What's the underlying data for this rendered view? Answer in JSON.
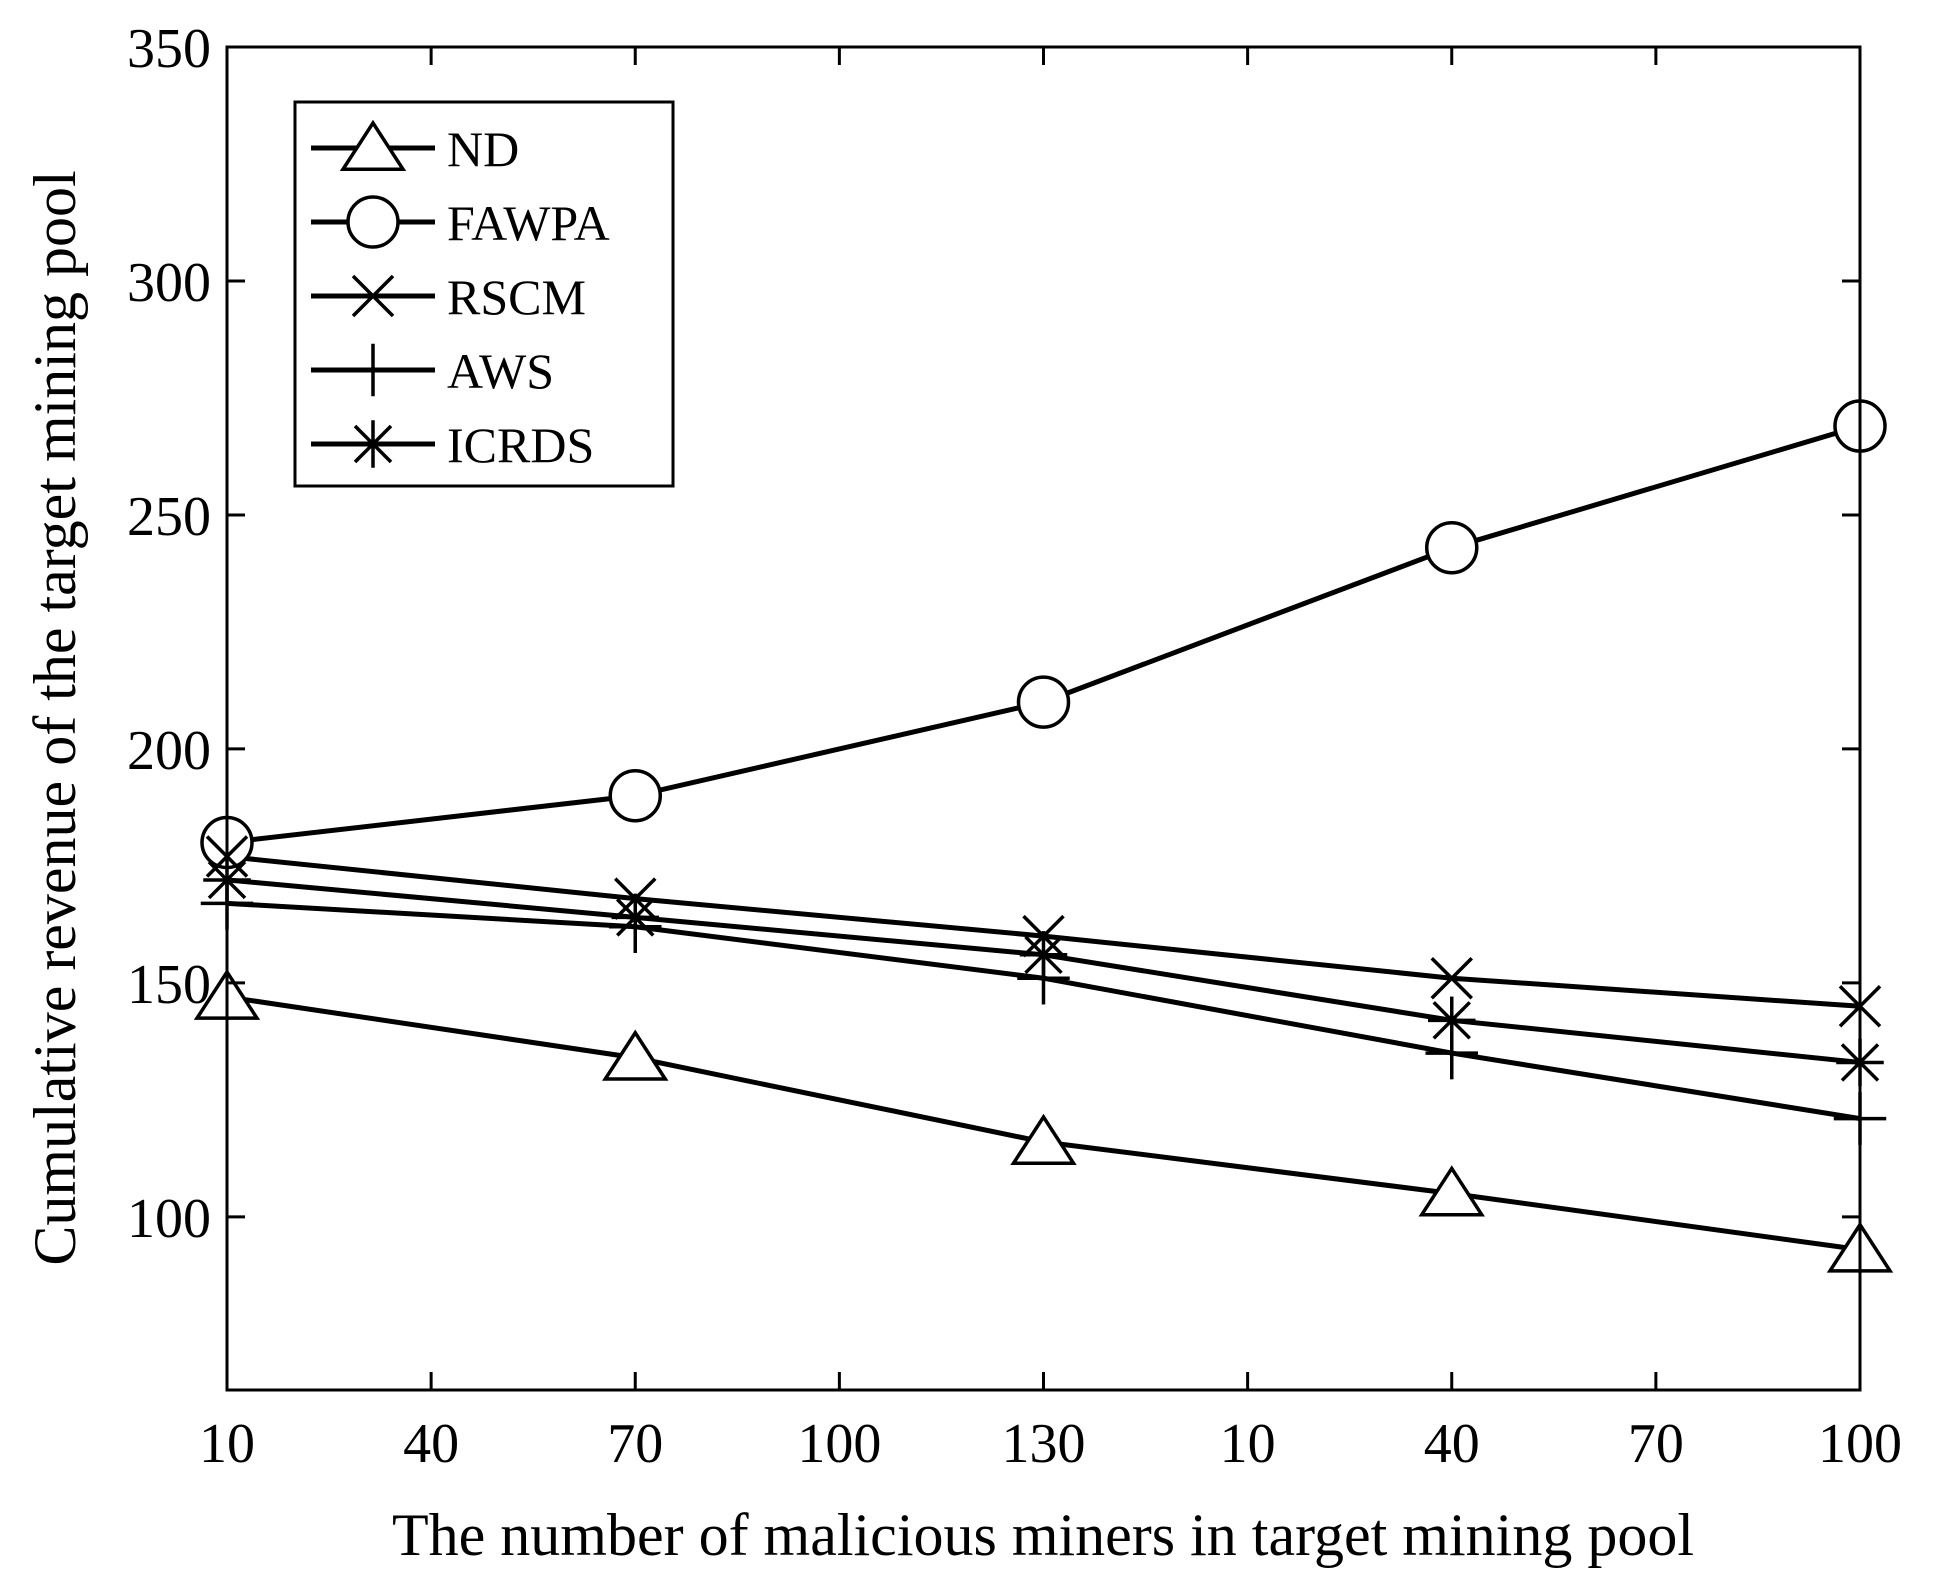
{
  "chart_data": {
    "type": "line",
    "title": "",
    "xlabel": "The number of malicious miners in target mining pool",
    "ylabel": "Cumulative revenue of the target mining pool",
    "x_tick_labels": [
      "10",
      "40",
      "70",
      "100",
      "130",
      "10",
      "40",
      "70",
      "100"
    ],
    "x_positions": [
      0,
      1,
      2,
      3,
      4,
      5,
      6,
      7,
      8
    ],
    "y_ticks": [
      100,
      150,
      200,
      250,
      300,
      350
    ],
    "ylim": [
      63,
      350
    ],
    "grid": false,
    "legend_position": "top-left",
    "series": [
      {
        "name": "ND",
        "marker": "triangle",
        "x": [
          0,
          2,
          4,
          6,
          8
        ],
        "values": [
          147,
          134,
          116,
          105,
          93
        ]
      },
      {
        "name": "FAWPA",
        "marker": "circle",
        "x": [
          0,
          2,
          4,
          6,
          8
        ],
        "values": [
          180,
          190,
          210,
          243,
          269
        ]
      },
      {
        "name": "RSCM",
        "marker": "x",
        "x": [
          0,
          2,
          4,
          6,
          8
        ],
        "values": [
          177,
          168,
          160,
          151,
          145
        ]
      },
      {
        "name": "AWS",
        "marker": "plus",
        "x": [
          0,
          2,
          4,
          6,
          8
        ],
        "values": [
          167,
          162,
          151,
          135,
          121
        ]
      },
      {
        "name": "ICRDS",
        "marker": "asterisk",
        "x": [
          0,
          2,
          4,
          6,
          8
        ],
        "values": [
          172,
          164,
          156,
          142,
          133
        ]
      }
    ],
    "colors": {
      "line": "#000000",
      "background": "#ffffff"
    }
  }
}
